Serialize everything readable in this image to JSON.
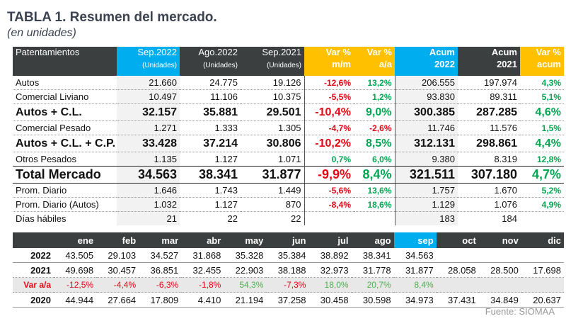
{
  "title": "TABLA 1. Resumen del mercado.",
  "subtitle": "(en unidades)",
  "source": "Fuente: SIOMAA",
  "colors": {
    "blue": "#00aeef",
    "orange": "#ffc000",
    "dark": "#3b3f3f",
    "negative": "#e30613",
    "positive": "#00a651"
  },
  "summary": {
    "headers": [
      {
        "label": "Patentamientos",
        "sub": ""
      },
      {
        "label": "Sep.2022",
        "sub": "(Unidades)"
      },
      {
        "label": "Ago.2022",
        "sub": "(Unidades)"
      },
      {
        "label": "Sep.2021",
        "sub": "(Unidades)"
      },
      {
        "label": "Var %",
        "sub": "m/m"
      },
      {
        "label": "Var %",
        "sub": "a/a"
      },
      {
        "label": "Acum",
        "sub": "2022"
      },
      {
        "label": "Acum",
        "sub": "2021"
      },
      {
        "label": "Var %",
        "sub": "acum"
      }
    ],
    "rows": [
      {
        "cells": [
          "Autos",
          "21.660",
          "24.775",
          "19.126",
          "-12,6%",
          "13,2%",
          "206.555",
          "197.974",
          "4,3%"
        ],
        "style": ""
      },
      {
        "cells": [
          "Comercial Liviano",
          "10.497",
          "11.106",
          "10.375",
          "-5,5%",
          "1,2%",
          "93.830",
          "89.311",
          "5,1%"
        ],
        "style": ""
      },
      {
        "cells": [
          "Autos + C.L.",
          "32.157",
          "35.881",
          "29.501",
          "-10,4%",
          "9,0%",
          "300.385",
          "287.285",
          "4,6%"
        ],
        "style": "big"
      },
      {
        "cells": [
          "Comercial Pesado",
          "1.271",
          "1.333",
          "1.305",
          "-4,7%",
          "-2,6%",
          "11.746",
          "11.576",
          "1,5%"
        ],
        "style": ""
      },
      {
        "cells": [
          "Autos + C.L. + C.P.",
          "33.428",
          "37.214",
          "30.806",
          "-10,2%",
          "8,5%",
          "312.131",
          "298.861",
          "4,4%"
        ],
        "style": "big"
      },
      {
        "cells": [
          "Otros Pesados",
          "1.135",
          "1.127",
          "1.071",
          "0,7%",
          "6,0%",
          "9.380",
          "8.319",
          "12,8%"
        ],
        "style": ""
      },
      {
        "cells": [
          "Total Mercado",
          "34.563",
          "38.341",
          "31.877",
          "-9,9%",
          "8,4%",
          "321.511",
          "307.180",
          "4,7%"
        ],
        "style": "total"
      },
      {
        "cells": [
          "Prom. Diario",
          "1.646",
          "1.743",
          "1.449",
          "-5,6%",
          "13,6%",
          "1.757",
          "1.670",
          "5,2%"
        ],
        "style": ""
      },
      {
        "cells": [
          "Prom. Diario (Autos)",
          "1.032",
          "1.127",
          "870",
          "-8,4%",
          "18,6%",
          "1.129",
          "1.076",
          "4,9%"
        ],
        "style": ""
      },
      {
        "cells": [
          "Días hábiles",
          "21",
          "22",
          "22",
          "",
          "",
          "183",
          "184",
          ""
        ],
        "style": "last"
      }
    ]
  },
  "monthly": {
    "months": [
      "ene",
      "feb",
      "mar",
      "abr",
      "may",
      "jun",
      "jul",
      "ago",
      "sep",
      "oct",
      "nov",
      "dic"
    ],
    "highlight_month": "sep",
    "rows": [
      {
        "label": "2022",
        "values": [
          "43.505",
          "29.103",
          "34.527",
          "31.868",
          "35.328",
          "35.384",
          "38.892",
          "38.341",
          "34.563",
          "",
          "",
          ""
        ],
        "style": "r2022"
      },
      {
        "label": "2021",
        "values": [
          "49.698",
          "30.457",
          "36.851",
          "32.455",
          "22.903",
          "38.188",
          "32.973",
          "31.778",
          "31.877",
          "28.058",
          "28.500",
          "17.698"
        ],
        "style": "r2021"
      },
      {
        "label": "Var a/a",
        "values": [
          "-12,5%",
          "-4,4%",
          "-6,3%",
          "-1,8%",
          "54,3%",
          "-7,3%",
          "18,0%",
          "20,7%",
          "8,4%",
          "",
          "",
          ""
        ],
        "style": "var"
      },
      {
        "label": "2020",
        "values": [
          "44.944",
          "27.664",
          "17.809",
          "4.410",
          "21.194",
          "37.258",
          "30.458",
          "30.598",
          "34.973",
          "37.431",
          "34.849",
          "20.637"
        ],
        "style": "r2020"
      }
    ]
  }
}
